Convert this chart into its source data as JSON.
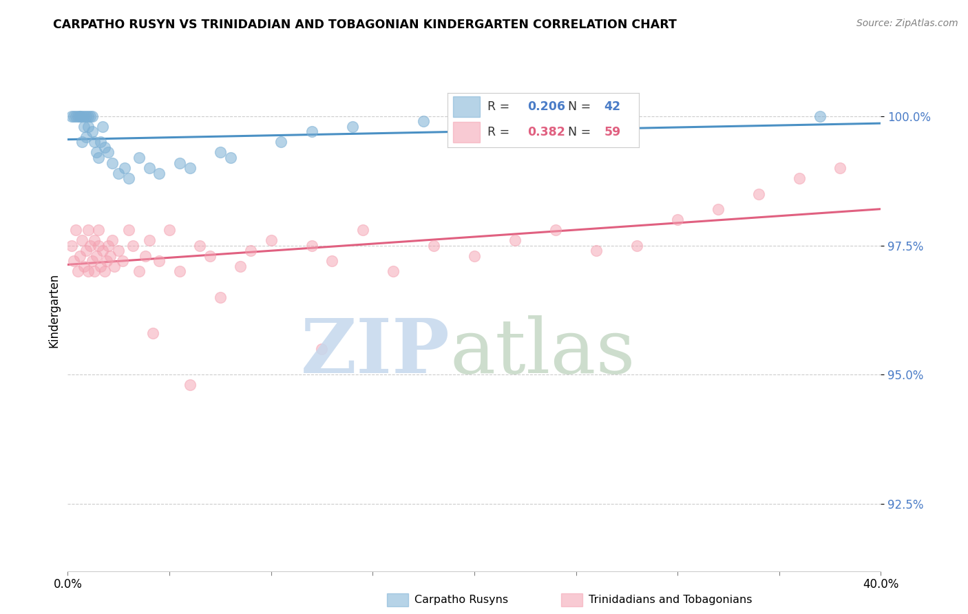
{
  "title": "CARPATHO RUSYN VS TRINIDADIAN AND TOBAGONIAN KINDERGARTEN CORRELATION CHART",
  "source": "Source: ZipAtlas.com",
  "ylabel": "Kindergarten",
  "ytick_values": [
    92.5,
    95.0,
    97.5,
    100.0
  ],
  "xmin": 0.0,
  "xmax": 40.0,
  "ymin": 91.2,
  "ymax": 101.3,
  "legend_blue_label": "Carpatho Rusyns",
  "legend_pink_label": "Trinidadians and Tobagonians",
  "r_blue": 0.206,
  "n_blue": 42,
  "r_pink": 0.382,
  "n_pink": 59,
  "blue_color": "#7BAFD4",
  "pink_color": "#F4A0B0",
  "blue_line_color": "#4A90C4",
  "pink_line_color": "#E06080",
  "blue_scatter_x": [
    0.2,
    0.3,
    0.4,
    0.5,
    0.6,
    0.6,
    0.7,
    0.7,
    0.8,
    0.8,
    0.9,
    0.9,
    1.0,
    1.0,
    1.1,
    1.2,
    1.2,
    1.3,
    1.4,
    1.5,
    1.6,
    1.7,
    1.8,
    2.0,
    2.2,
    2.5,
    2.8,
    3.0,
    3.5,
    4.0,
    4.5,
    5.5,
    6.0,
    7.5,
    8.0,
    10.5,
    12.0,
    14.0,
    17.5,
    19.0,
    23.0,
    37.0
  ],
  "blue_scatter_y": [
    100.0,
    100.0,
    100.0,
    100.0,
    100.0,
    100.0,
    100.0,
    99.5,
    100.0,
    99.8,
    100.0,
    99.6,
    99.8,
    100.0,
    100.0,
    99.7,
    100.0,
    99.5,
    99.3,
    99.2,
    99.5,
    99.8,
    99.4,
    99.3,
    99.1,
    98.9,
    99.0,
    98.8,
    99.2,
    99.0,
    98.9,
    99.1,
    99.0,
    99.3,
    99.2,
    99.5,
    99.7,
    99.8,
    99.9,
    100.0,
    100.0,
    100.0
  ],
  "pink_scatter_x": [
    0.2,
    0.3,
    0.4,
    0.5,
    0.6,
    0.7,
    0.8,
    0.9,
    1.0,
    1.0,
    1.1,
    1.2,
    1.3,
    1.3,
    1.4,
    1.5,
    1.5,
    1.6,
    1.7,
    1.8,
    1.9,
    2.0,
    2.1,
    2.2,
    2.3,
    2.5,
    2.7,
    3.0,
    3.2,
    3.5,
    3.8,
    4.0,
    4.5,
    5.0,
    5.5,
    6.5,
    7.0,
    8.5,
    9.0,
    10.0,
    12.0,
    13.0,
    14.5,
    16.0,
    18.0,
    20.0,
    22.0,
    24.0,
    26.0,
    28.0,
    30.0,
    32.0,
    34.0,
    36.0,
    38.0,
    12.5,
    7.5,
    4.2,
    6.0
  ],
  "pink_scatter_y": [
    97.5,
    97.2,
    97.8,
    97.0,
    97.3,
    97.6,
    97.1,
    97.4,
    97.8,
    97.0,
    97.5,
    97.2,
    97.6,
    97.0,
    97.3,
    97.5,
    97.8,
    97.1,
    97.4,
    97.0,
    97.2,
    97.5,
    97.3,
    97.6,
    97.1,
    97.4,
    97.2,
    97.8,
    97.5,
    97.0,
    97.3,
    97.6,
    97.2,
    97.8,
    97.0,
    97.5,
    97.3,
    97.1,
    97.4,
    97.6,
    97.5,
    97.2,
    97.8,
    97.0,
    97.5,
    97.3,
    97.6,
    97.8,
    97.4,
    97.5,
    98.0,
    98.2,
    98.5,
    98.8,
    99.0,
    95.5,
    96.5,
    95.8,
    94.8
  ]
}
